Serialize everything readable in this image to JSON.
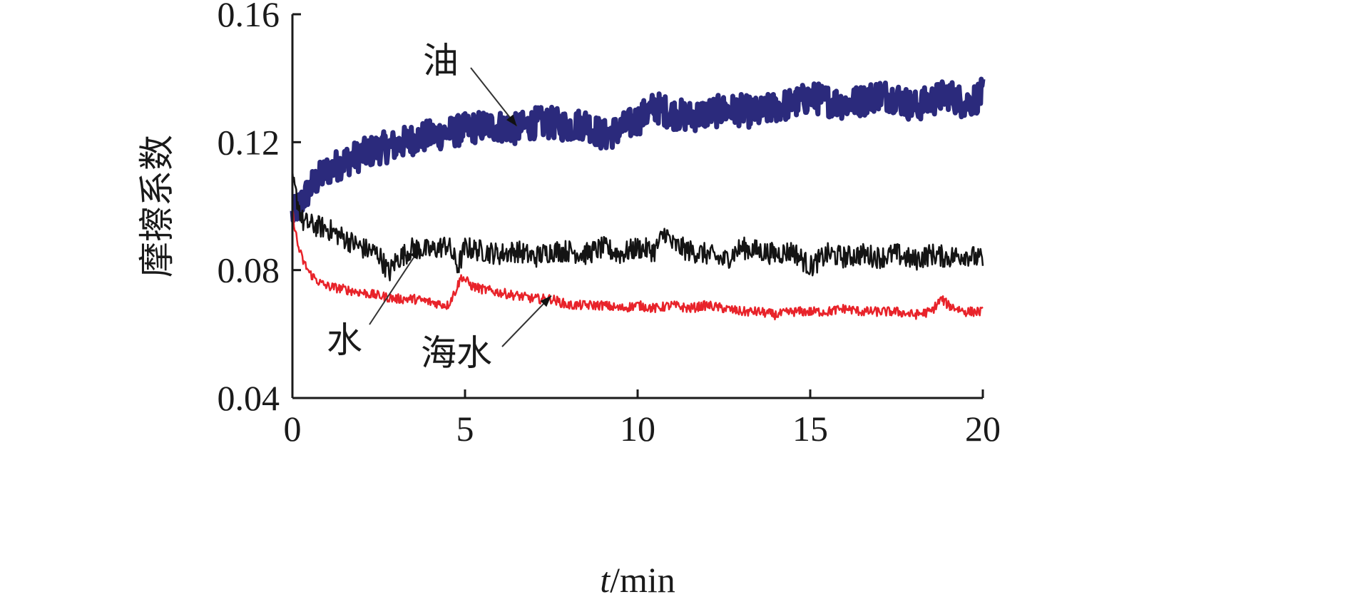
{
  "chart_data": {
    "type": "line",
    "xlabel_italic": "t",
    "xlabel_unit": "/min",
    "ylabel": "摩擦系数",
    "xlim": [
      0,
      20
    ],
    "ylim": [
      0.04,
      0.16
    ],
    "x_ticks": [
      "0",
      "5",
      "10",
      "15",
      "20"
    ],
    "y_ticks": [
      "0.04",
      "0.08",
      "0.12",
      "0.16"
    ],
    "grid": false,
    "series": [
      {
        "name": "油",
        "color": "#2b2a7c",
        "noise": 0.005,
        "x": [
          0,
          0.3,
          0.6,
          1,
          1.5,
          2,
          2.5,
          3,
          3.5,
          4,
          4.5,
          5,
          5.5,
          6,
          6.5,
          7,
          7.5,
          8,
          8.5,
          9,
          9.5,
          10,
          10.5,
          11,
          11.5,
          12,
          12.5,
          13,
          13.5,
          14,
          14.5,
          15,
          15.5,
          16,
          16.5,
          17,
          17.5,
          18,
          18.5,
          19,
          19.5,
          20
        ],
        "y": [
          0.097,
          0.102,
          0.107,
          0.111,
          0.114,
          0.116,
          0.118,
          0.119,
          0.121,
          0.122,
          0.123,
          0.124,
          0.125,
          0.125,
          0.124,
          0.126,
          0.126,
          0.125,
          0.126,
          0.122,
          0.124,
          0.127,
          0.131,
          0.129,
          0.128,
          0.129,
          0.13,
          0.13,
          0.129,
          0.131,
          0.132,
          0.134,
          0.133,
          0.132,
          0.133,
          0.135,
          0.134,
          0.131,
          0.133,
          0.135,
          0.132,
          0.135
        ]
      },
      {
        "name": "水",
        "color": "#141414",
        "noise": 0.0035,
        "x": [
          0,
          0.3,
          0.6,
          1,
          1.5,
          2,
          2.5,
          2.8,
          3,
          3.5,
          4,
          4.5,
          4.8,
          5,
          5.5,
          6,
          6.5,
          7,
          7.5,
          8,
          8.5,
          9,
          9.5,
          10,
          10.5,
          10.8,
          11,
          11.5,
          12,
          12.5,
          13,
          13.5,
          14,
          14.5,
          15,
          15.5,
          16,
          16.5,
          17,
          17.5,
          18,
          18.5,
          19,
          19.5,
          20
        ],
        "y": [
          0.108,
          0.095,
          0.094,
          0.093,
          0.09,
          0.087,
          0.085,
          0.079,
          0.083,
          0.087,
          0.086,
          0.088,
          0.081,
          0.087,
          0.086,
          0.085,
          0.086,
          0.084,
          0.086,
          0.086,
          0.085,
          0.087,
          0.085,
          0.087,
          0.086,
          0.092,
          0.088,
          0.086,
          0.085,
          0.083,
          0.087,
          0.086,
          0.085,
          0.086,
          0.081,
          0.085,
          0.084,
          0.085,
          0.084,
          0.085,
          0.083,
          0.085,
          0.084,
          0.085,
          0.083
        ]
      },
      {
        "name": "海水",
        "color": "#e8232a",
        "noise": 0.0015,
        "x": [
          0,
          0.15,
          0.3,
          0.5,
          0.8,
          1,
          1.5,
          2,
          2.5,
          3,
          3.5,
          4,
          4.5,
          4.7,
          4.9,
          5.2,
          5.5,
          6,
          6.5,
          7,
          7.5,
          8,
          8.5,
          9,
          9.5,
          10,
          10.5,
          11,
          11.5,
          12,
          12.5,
          13,
          13.5,
          14,
          14.5,
          15,
          15.5,
          16,
          16.5,
          17,
          17.5,
          18,
          18.5,
          18.8,
          19,
          19.5,
          20
        ],
        "y": [
          0.098,
          0.088,
          0.083,
          0.079,
          0.076,
          0.075,
          0.074,
          0.073,
          0.072,
          0.071,
          0.071,
          0.07,
          0.069,
          0.073,
          0.078,
          0.075,
          0.074,
          0.073,
          0.072,
          0.071,
          0.071,
          0.069,
          0.069,
          0.069,
          0.068,
          0.069,
          0.068,
          0.069,
          0.068,
          0.069,
          0.068,
          0.067,
          0.067,
          0.066,
          0.067,
          0.067,
          0.067,
          0.068,
          0.067,
          0.067,
          0.067,
          0.066,
          0.067,
          0.071,
          0.069,
          0.067,
          0.067
        ]
      }
    ],
    "annotations": [
      {
        "text": "油",
        "target": "油",
        "point": [
          6.5,
          0.125
        ]
      },
      {
        "text": "水",
        "target": "水",
        "point": [
          3.7,
          0.087
        ]
      },
      {
        "text": "海水",
        "target": "海水",
        "point": [
          7.5,
          0.072
        ]
      }
    ]
  }
}
